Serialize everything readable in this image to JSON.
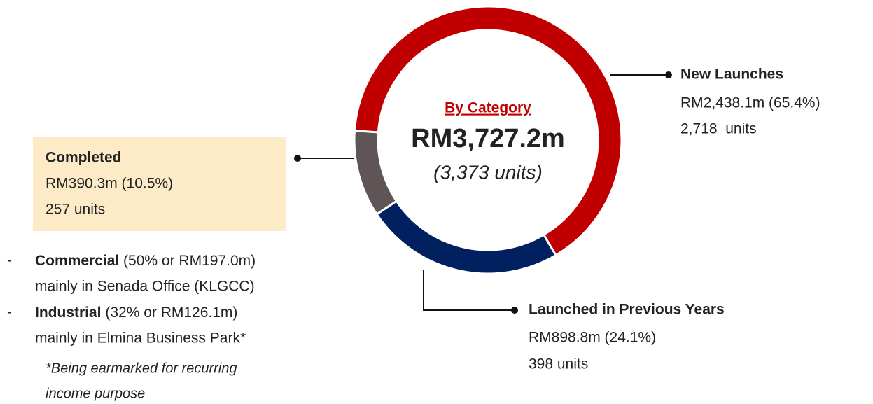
{
  "chart_data": {
    "type": "pie",
    "donut": true,
    "start_angle": 274,
    "center_title": "By Category",
    "center_value": "RM3,727.2m",
    "center_subtitle": "(3,373 units)",
    "categories": [
      "New Launches",
      "Launched in Previous Years",
      "Completed"
    ],
    "values": [
      2438.1,
      898.8,
      390.3
    ],
    "value_labels": [
      "RM2,438.1m (65.4%)",
      "RM898.8m (24.1%)",
      "RM390.3m (10.5%)"
    ],
    "unit_labels": [
      "2,718  units",
      "398 units",
      "257 units"
    ],
    "colors": [
      "#c00000",
      "#002060",
      "#5f5557"
    ]
  },
  "completed_breakdown": [
    {
      "marker": "-",
      "name": "Commercial",
      "share": " (50% or RM197.0m)",
      "detail": "mainly in Senada Office (KLGCC)"
    },
    {
      "marker": "-",
      "name": "Industrial",
      "share": " (32% or RM126.1m)",
      "detail": "mainly in Elmina Business Park*"
    }
  ],
  "footnote": [
    "*Being earmarked for recurring",
    "income purpose"
  ]
}
